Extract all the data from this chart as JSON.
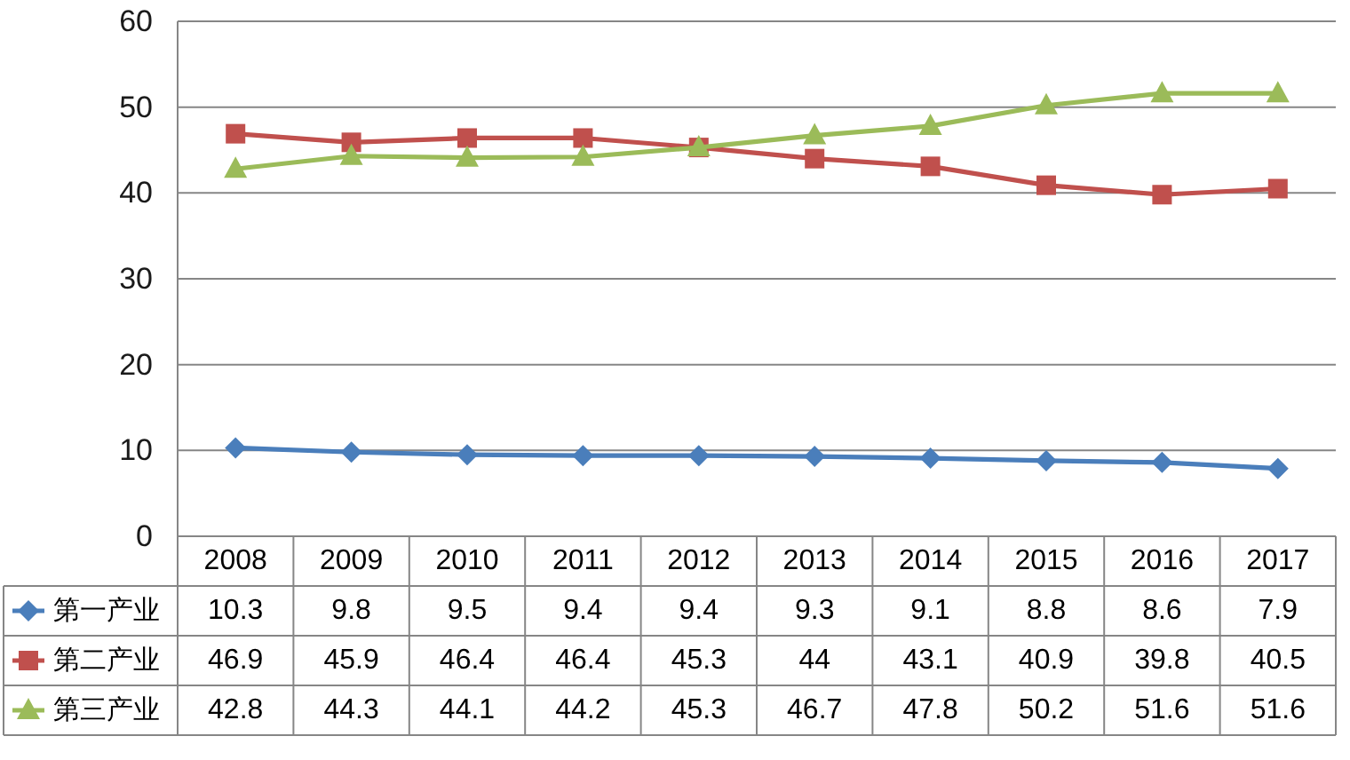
{
  "chart_data": {
    "type": "line",
    "categories": [
      "2008",
      "2009",
      "2010",
      "2011",
      "2012",
      "2013",
      "2014",
      "2015",
      "2016",
      "2017"
    ],
    "series": [
      {
        "name": "第一产业",
        "color": "#4a7ebb",
        "marker": "diamond",
        "values": [
          10.3,
          9.8,
          9.5,
          9.4,
          9.4,
          9.3,
          9.1,
          8.8,
          8.6,
          7.9
        ]
      },
      {
        "name": "第二产业",
        "color": "#c0504d",
        "marker": "square",
        "values": [
          46.9,
          45.9,
          46.4,
          46.4,
          45.3,
          44,
          43.1,
          40.9,
          39.8,
          40.5
        ]
      },
      {
        "name": "第三产业",
        "color": "#9bbb59",
        "marker": "triangle",
        "values": [
          42.8,
          44.3,
          44.1,
          44.2,
          45.3,
          46.7,
          47.8,
          50.2,
          51.6,
          51.6
        ]
      }
    ],
    "ylim": [
      0,
      60
    ],
    "yticks": [
      0,
      10,
      20,
      30,
      40,
      50,
      60
    ],
    "grid": "y",
    "legend": "bottom",
    "data_labels": true
  }
}
